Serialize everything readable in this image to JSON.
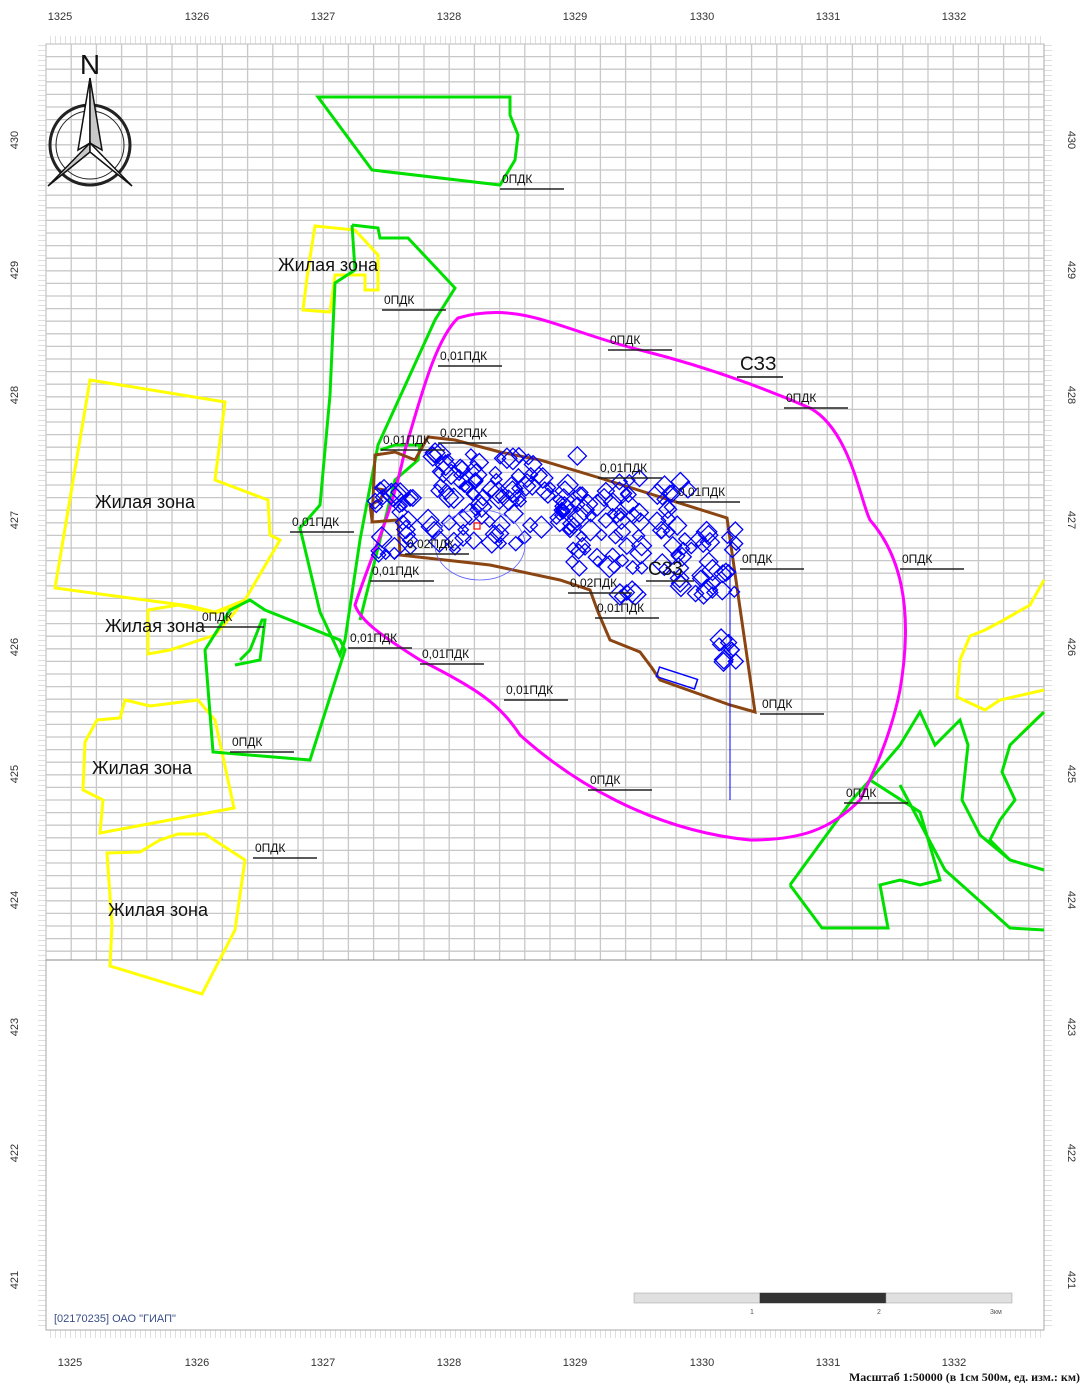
{
  "x_ticks": [
    "1325",
    "1326",
    "1327",
    "1328",
    "1329",
    "1330",
    "1331",
    "1332"
  ],
  "y_ticks": [
    "430",
    "429",
    "428",
    "427",
    "426",
    "425",
    "424",
    "423",
    "422",
    "421"
  ],
  "north_label": "N",
  "zone_labels": [
    {
      "text": "Жилая зона",
      "name": "residential-zone-north-label"
    },
    {
      "text": "Жилая зона",
      "name": "residential-zone-west-label"
    },
    {
      "text": "Жилая зона",
      "name": "residential-zone-southwest-label"
    },
    {
      "text": "Жилая зона",
      "name": "residential-zone-south1-label"
    },
    {
      "text": "Жилая зона",
      "name": "residential-zone-south2-label"
    }
  ],
  "szz_labels": [
    "СЗЗ",
    "СЗЗ"
  ],
  "isoline_labels": [
    "0ПДК",
    "0ПДК",
    "0,01ПДК",
    "0ПДК",
    "С33",
    "0ПДК",
    "0,01ПДК",
    "0,02ПДК",
    "0,01ПДК",
    "0,01ПДК",
    "0,01ПДК",
    "0,02ПДК",
    "0ПДК",
    "0ПДК",
    "0,01ПДК",
    "0,02ПДК",
    "0,01ПДК",
    "0ПДК",
    "0,01ПДК",
    "0,01ПДК",
    "0,01ПДК",
    "0ПДК",
    "0ПДК",
    "0ПДК",
    "0ПДК",
    "0ПДК"
  ],
  "footer": {
    "org": "[02170235] ОАО \"ГИАП\"",
    "scale": "Масштаб 1:50000 (в 1см 500м, ед. изм.: км)",
    "scalebar_ticks": [
      "1",
      "2",
      "3км"
    ]
  },
  "colors": {
    "grid": "#c8c8c8",
    "residential": "#ffff00",
    "isoline_green": "#00e000",
    "szz": "#ff00ff",
    "plant": "#8b4513",
    "sources": "#0000ff"
  }
}
